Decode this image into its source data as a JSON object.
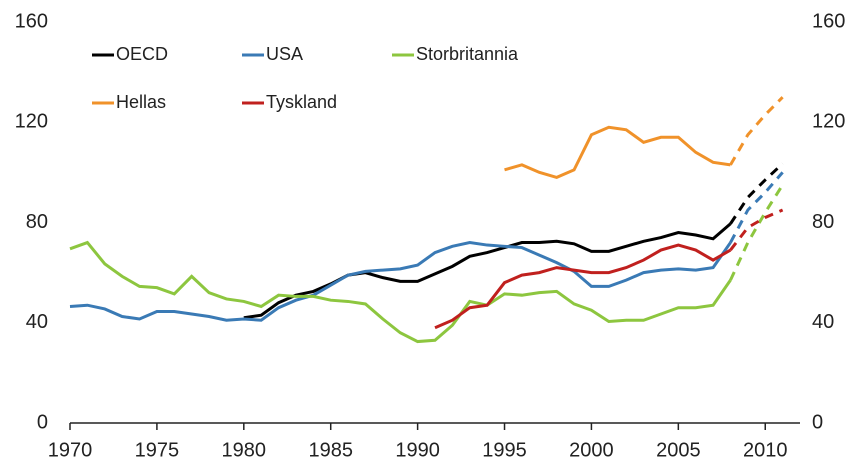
{
  "chart_data": {
    "type": "line",
    "x": [
      1970,
      1971,
      1972,
      1973,
      1974,
      1975,
      1976,
      1977,
      1978,
      1979,
      1980,
      1981,
      1982,
      1983,
      1984,
      1985,
      1986,
      1987,
      1988,
      1989,
      1990,
      1991,
      1992,
      1993,
      1994,
      1995,
      1996,
      1997,
      1998,
      1999,
      2000,
      2001,
      2002,
      2003,
      2004,
      2005,
      2006,
      2007,
      2008,
      2009,
      2010,
      2011
    ],
    "forecast_start": 2008,
    "series": [
      {
        "name": "OECD",
        "color": "#000000",
        "values": [
          null,
          null,
          null,
          null,
          null,
          null,
          null,
          null,
          null,
          null,
          42,
          43,
          48,
          51,
          52.5,
          55.5,
          59,
          60,
          58,
          56.5,
          56.5,
          59.5,
          62.5,
          66.5,
          68,
          70,
          72,
          72,
          72.5,
          71.5,
          68.5,
          68.5,
          70.5,
          72.5,
          74,
          76,
          75,
          73.5,
          79.5,
          90,
          97,
          103.5
        ]
      },
      {
        "name": "USA",
        "color": "#3a7ab5",
        "values": [
          46.5,
          47,
          45.5,
          42.5,
          41.5,
          44.5,
          44.5,
          43.5,
          42.5,
          41,
          41.5,
          41,
          46,
          49,
          51,
          55,
          59,
          60.5,
          61,
          61.5,
          63,
          68,
          70.5,
          72,
          71,
          70.5,
          70,
          67,
          64,
          60.5,
          54.5,
          54.5,
          57,
          60,
          61,
          61.5,
          61,
          62,
          72,
          85,
          92,
          100
        ]
      },
      {
        "name": "Storbritannia",
        "color": "#8dc63f",
        "values": [
          69.5,
          72,
          63.5,
          58.5,
          54.5,
          54,
          51.5,
          58.5,
          52,
          49.5,
          48.5,
          46.5,
          51,
          50.5,
          50.5,
          49,
          48.5,
          47.5,
          41.5,
          36,
          32.5,
          33,
          39,
          48.5,
          47,
          51.5,
          51,
          52,
          52.5,
          47.5,
          45,
          40.5,
          41,
          41,
          43.5,
          46,
          46,
          47,
          57,
          72,
          84,
          95
        ]
      },
      {
        "name": "Hellas",
        "color": "#f0922a",
        "values": [
          null,
          null,
          null,
          null,
          null,
          null,
          null,
          null,
          null,
          null,
          null,
          null,
          null,
          null,
          null,
          null,
          null,
          null,
          null,
          null,
          null,
          null,
          null,
          null,
          null,
          101,
          103,
          100,
          98,
          101,
          115,
          118,
          117,
          112,
          114,
          114,
          108,
          104,
          103,
          115,
          123,
          130
        ]
      },
      {
        "name": "Tyskland",
        "color": "#c0201e",
        "values": [
          null,
          null,
          null,
          null,
          null,
          null,
          null,
          null,
          null,
          null,
          null,
          null,
          null,
          null,
          null,
          null,
          null,
          null,
          null,
          null,
          null,
          38,
          41,
          46,
          47,
          56,
          59,
          60,
          62,
          61,
          60,
          60,
          62,
          65,
          69,
          71,
          69,
          65,
          69,
          78,
          82,
          85
        ]
      }
    ],
    "xlim": [
      1970,
      2012
    ],
    "xticks": [
      1970,
      1975,
      1980,
      1985,
      1990,
      1995,
      2000,
      2005,
      2010
    ],
    "ylim": [
      0,
      160
    ],
    "yticks": [
      0,
      40,
      80,
      120,
      160
    ],
    "y2lim": [
      0,
      160
    ],
    "y2ticks": [
      0,
      40,
      80,
      120,
      160
    ],
    "grid": false
  }
}
